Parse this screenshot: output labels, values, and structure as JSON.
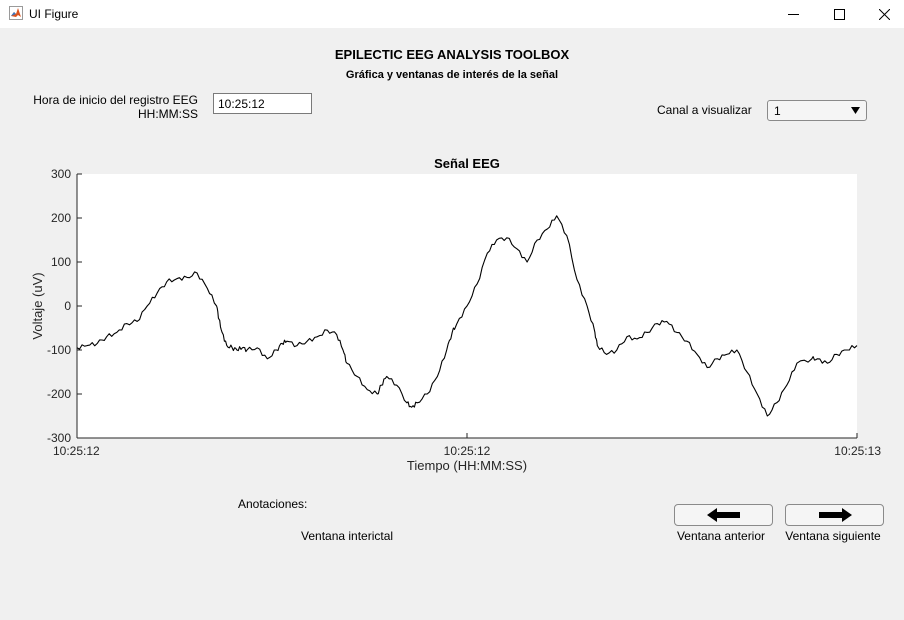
{
  "window": {
    "title": "UI Figure",
    "icon": "matlab-icon",
    "controls": [
      "minimize-icon",
      "maximize-icon",
      "close-icon"
    ]
  },
  "header": {
    "title": "EPILECTIC EEG ANALYSIS TOOLBOX",
    "subtitle": "Gráfica y ventanas de interés de la señal"
  },
  "start_time": {
    "label_line1": "Hora de inicio del registro EEG",
    "label_line2": "HH:MM:SS",
    "value": "10:25:12"
  },
  "channel": {
    "label": "Canal a visualizar",
    "selected": "1"
  },
  "chart_data": {
    "type": "line",
    "title": "Señal EEG",
    "xlabel": "Tiempo (HH:MM:SS)",
    "ylabel": "Voltaje (uV)",
    "xlim": [
      0,
      1
    ],
    "ylim": [
      -300,
      300
    ],
    "yticks": [
      -300,
      -200,
      -100,
      0,
      100,
      200,
      300
    ],
    "xticks": [
      0,
      0.5,
      1
    ],
    "xtick_labels": [
      "10:25:12",
      "10:25:12",
      "10:25:13"
    ],
    "grid": false,
    "color": "#000000",
    "series": [
      {
        "x": [
          0,
          0.013,
          0.026,
          0.038,
          0.051,
          0.064,
          0.077,
          0.09,
          0.103,
          0.115,
          0.128,
          0.141,
          0.154,
          0.167,
          0.179,
          0.182,
          0.186,
          0.192,
          0.199,
          0.205,
          0.212,
          0.218,
          0.231,
          0.244,
          0.256,
          0.263,
          0.269,
          0.282,
          0.295,
          0.308,
          0.321,
          0.333,
          0.341,
          0.346,
          0.359,
          0.372,
          0.385,
          0.39,
          0.397,
          0.41,
          0.423,
          0.429,
          0.436,
          0.449,
          0.462,
          0.474,
          0.481,
          0.487,
          0.5,
          0.513,
          0.526,
          0.538,
          0.551,
          0.564,
          0.577,
          0.59,
          0.603,
          0.615,
          0.628,
          0.641,
          0.654,
          0.664,
          0.667,
          0.679,
          0.692,
          0.705,
          0.718,
          0.731,
          0.744,
          0.756,
          0.769,
          0.782,
          0.795,
          0.808,
          0.821,
          0.833,
          0.846,
          0.859,
          0.872,
          0.885,
          0.897,
          0.91,
          0.923,
          0.942,
          0.949,
          0.962,
          0.974,
          0.987,
          1.0
        ],
        "y": [
          -95,
          -90,
          -85,
          -70,
          -60,
          -40,
          -35,
          0,
          30,
          55,
          62,
          65,
          75,
          40,
          0,
          -30,
          -60,
          -90,
          -95,
          -100,
          -95,
          -100,
          -95,
          -120,
          -100,
          -85,
          -80,
          -90,
          -80,
          -70,
          -55,
          -65,
          -100,
          -130,
          -160,
          -190,
          -200,
          -180,
          -160,
          -180,
          -220,
          -230,
          -220,
          -200,
          -160,
          -100,
          -60,
          -40,
          0,
          50,
          120,
          150,
          155,
          130,
          100,
          150,
          175,
          205,
          160,
          60,
          0,
          -60,
          -90,
          -110,
          -100,
          -70,
          -75,
          -60,
          -40,
          -35,
          -60,
          -80,
          -110,
          -140,
          -120,
          -110,
          -100,
          -150,
          -200,
          -250,
          -220,
          -180,
          -130,
          -120,
          -120,
          -130,
          -110,
          -100,
          -90
        ]
      }
    ]
  },
  "annotations": {
    "label": "Anotaciones:",
    "value": "Ventana interictal"
  },
  "nav": {
    "prev_label": "Ventana anterior",
    "next_label": "Ventana siguiente",
    "prev_icon": "arrow-left-icon",
    "next_icon": "arrow-right-icon"
  }
}
